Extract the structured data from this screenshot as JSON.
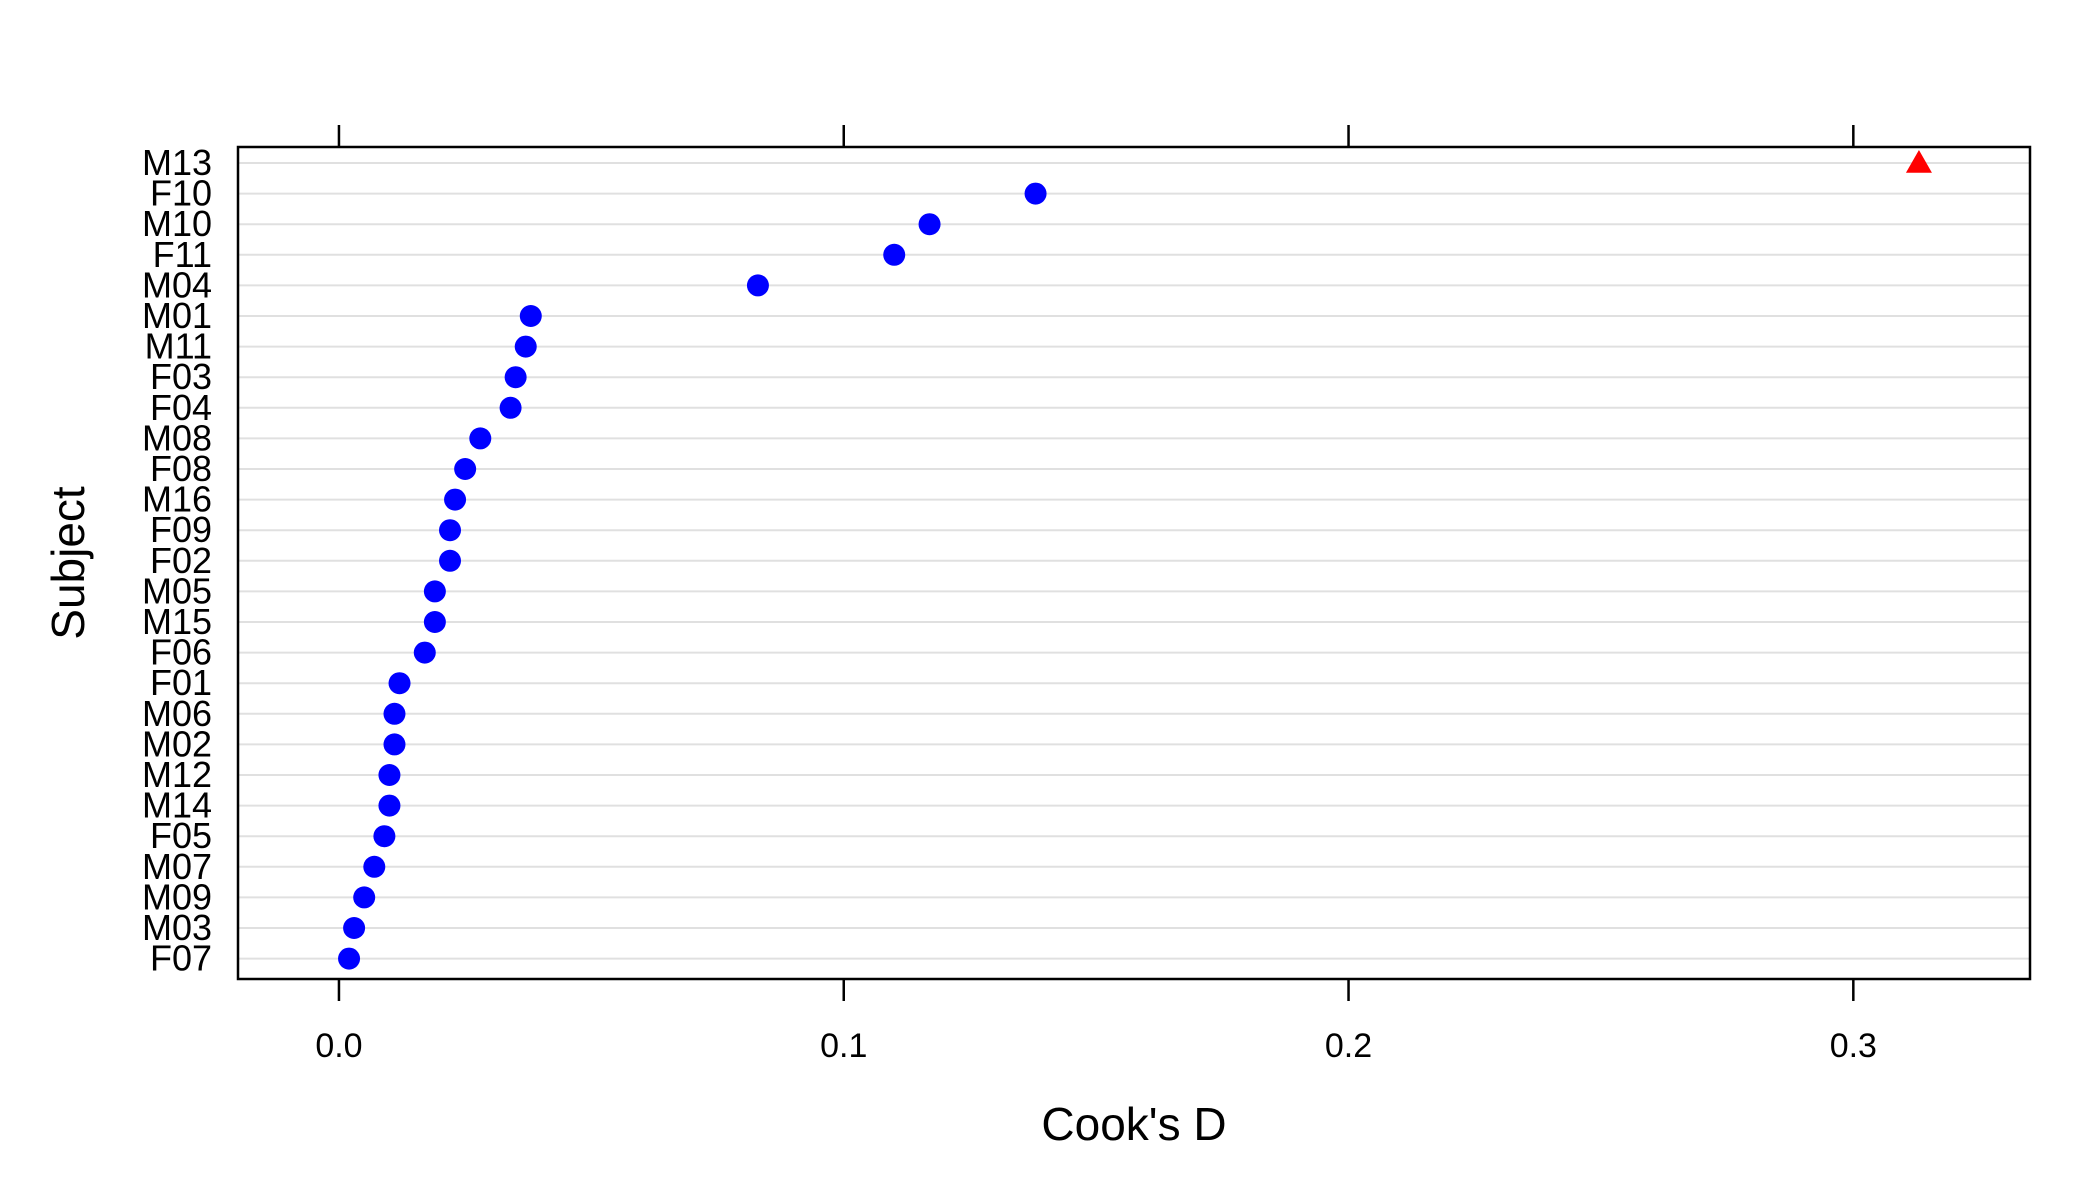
{
  "chart_data": {
    "type": "dotplot",
    "xlabel": "Cook's D",
    "ylabel": "Subject",
    "xlim": [
      -0.02,
      0.335
    ],
    "x_ticks": [
      0.0,
      0.1,
      0.2,
      0.3
    ],
    "x_tick_labels": [
      "0.0",
      "0.1",
      "0.2",
      "0.3"
    ],
    "grid": true,
    "categories": [
      "M13",
      "F10",
      "M10",
      "F11",
      "M04",
      "M01",
      "M11",
      "F03",
      "F04",
      "M08",
      "F08",
      "M16",
      "F09",
      "F02",
      "M05",
      "M15",
      "F06",
      "F01",
      "M06",
      "M02",
      "M12",
      "M14",
      "F05",
      "M07",
      "M09",
      "M03",
      "F07"
    ],
    "values": [
      0.313,
      0.138,
      0.117,
      0.11,
      0.083,
      0.038,
      0.037,
      0.035,
      0.034,
      0.028,
      0.025,
      0.023,
      0.022,
      0.022,
      0.019,
      0.019,
      0.017,
      0.012,
      0.011,
      0.011,
      0.01,
      0.01,
      0.009,
      0.007,
      0.005,
      0.003,
      0.002
    ],
    "flagged": [
      "M13"
    ],
    "colors": {
      "point": "#0000ff",
      "flagged": "#ff0000",
      "grid": "#e0e0e0",
      "frame": "#000000"
    }
  }
}
